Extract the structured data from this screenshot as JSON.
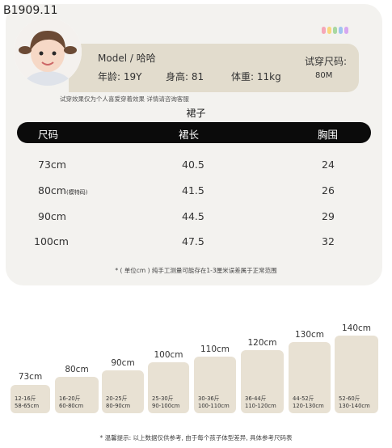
{
  "product_code": "B1909.11",
  "model": {
    "name_label": "Model / 哈哈",
    "age": "年龄: 19Y",
    "height": "身高: 81",
    "weight": "体重: 11kg",
    "fit_label": "试穿尺码:",
    "fit_size": "80M"
  },
  "note": "试穿效果仅为个人喜爱穿着效果 详情请咨询客服",
  "table": {
    "title": "裙子",
    "headers": [
      "尺码",
      "裙长",
      "胸围"
    ],
    "rows": [
      {
        "size": "73cm",
        "size_note": "",
        "length": "40.5",
        "chest": "24"
      },
      {
        "size": "80cm",
        "size_note": "(模特码)",
        "length": "41.5",
        "chest": "26"
      },
      {
        "size": "90cm",
        "size_note": "",
        "length": "44.5",
        "chest": "29"
      },
      {
        "size": "100cm",
        "size_note": "",
        "length": "47.5",
        "chest": "32"
      }
    ],
    "unit_note": "* ( 单位cm )  纯手工测量可能存在1-3厘米误差属于正常范围"
  },
  "size_guide": [
    {
      "label": "73cm",
      "weight": "12-16斤",
      "height": "58-65cm"
    },
    {
      "label": "80cm",
      "weight": "16-20斤",
      "height": "60-80cm"
    },
    {
      "label": "90cm",
      "weight": "20-25斤",
      "height": "80-90cm"
    },
    {
      "label": "100cm",
      "weight": "25-30斤",
      "height": "90-100cm"
    },
    {
      "label": "110cm",
      "weight": "30-36斤",
      "height": "100-110cm"
    },
    {
      "label": "120cm",
      "weight": "36-44斤",
      "height": "110-120cm"
    },
    {
      "label": "130cm",
      "weight": "44-52斤",
      "height": "120-130cm"
    },
    {
      "label": "140cm",
      "weight": "52-60斤",
      "height": "130-140cm"
    }
  ],
  "footer": "* 温馨提示:  以上数据仅供参考,  由于每个孩子体型差异,  具体参考尺码表",
  "colors": {
    "card": "#f3f2ef",
    "info_band": "#e2dccd",
    "header_bar": "#0b0b0b",
    "size_bar": "#e8e1d3"
  }
}
